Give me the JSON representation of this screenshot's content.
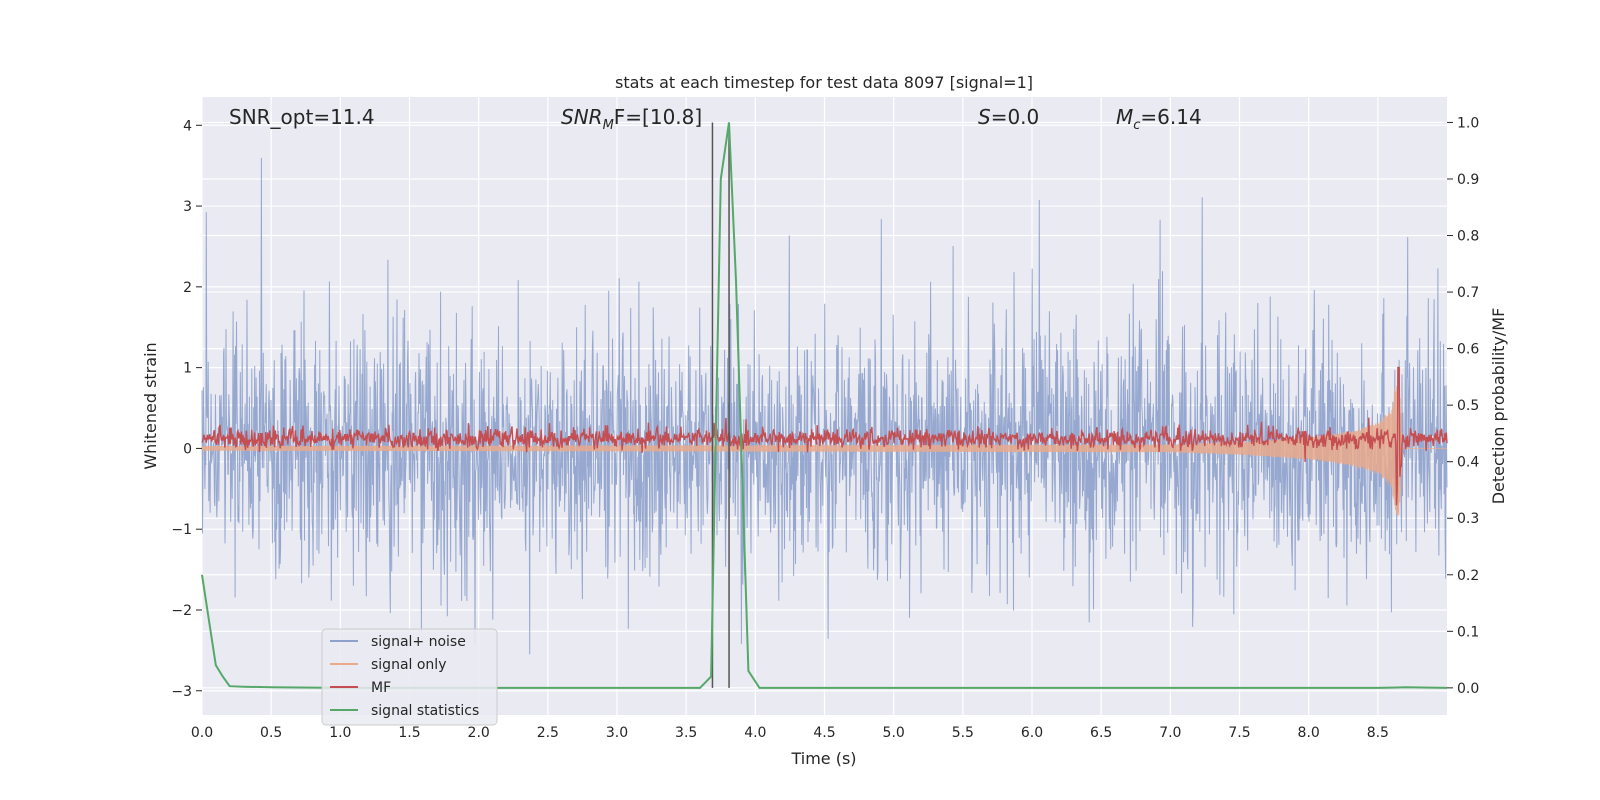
{
  "chart_data": {
    "type": "line",
    "title": "stats at each timestep for test data 8097 [signal=1]",
    "xlabel": "Time (s)",
    "ylabel": "Whitened strain",
    "y2label": "Detection probability/MF",
    "xlim": [
      0.0,
      9.0
    ],
    "ylim": [
      -3.3,
      4.35
    ],
    "y2lim": [
      -0.048,
      1.045
    ],
    "x_ticks": [
      "0.0",
      "0.5",
      "1.0",
      "1.5",
      "2.0",
      "2.5",
      "3.0",
      "3.5",
      "4.0",
      "4.5",
      "5.0",
      "5.5",
      "6.0",
      "6.5",
      "7.0",
      "7.5",
      "8.0",
      "8.5"
    ],
    "y_ticks": [
      "4",
      "3",
      "2",
      "1",
      "0",
      "−1",
      "−2",
      "−3"
    ],
    "y2_ticks": [
      "1.0",
      "0.9",
      "0.8",
      "0.7",
      "0.6",
      "0.5",
      "0.4",
      "0.3",
      "0.2",
      "0.1",
      "0.0"
    ],
    "grid": true,
    "legend_position": "lower-left",
    "annotations": {
      "snr_opt": "SNR_opt=11.4",
      "snr_mf_base": "SNR",
      "snr_mf_sub": "M",
      "snr_mf_rest": "F=[10.8]",
      "s_var": "S",
      "s_rest": "=0.0",
      "mc_base": "M",
      "mc_sub": "c",
      "mc_rest": "=6.14"
    },
    "vertical_lines_x": [
      3.69,
      3.81
    ],
    "series": [
      {
        "name": "signal+ noise",
        "color": "#8da1cb",
        "note_envelope": {
          "start": 0.0,
          "end": 9.0,
          "typical_abs_peak": 2.2,
          "max_peak": 4.0
        }
      },
      {
        "name": "signal only",
        "color": "#e9a98c",
        "envelope": {
          "x": [
            0.0,
            7.0,
            7.5,
            8.0,
            8.3,
            8.5,
            8.6,
            8.65,
            8.68,
            9.0
          ],
          "amp": [
            0.03,
            0.05,
            0.08,
            0.14,
            0.22,
            0.32,
            0.5,
            1.0,
            0.0,
            0.0
          ]
        }
      },
      {
        "name": "MF",
        "color": "#c44e52",
        "baseline": 0.12,
        "peak": {
          "x": 8.65,
          "y": 1.0
        }
      },
      {
        "name": "signal statistics",
        "color": "#55a868",
        "axis": "right",
        "x": [
          0.0,
          0.05,
          0.1,
          0.15,
          0.2,
          0.3,
          0.5,
          1.0,
          2.0,
          3.0,
          3.6,
          3.68,
          3.75,
          3.81,
          3.86,
          3.95,
          4.03,
          5.0,
          6.0,
          7.0,
          8.0,
          8.5,
          8.7,
          9.0
        ],
        "values": [
          0.2,
          0.12,
          0.04,
          0.02,
          0.003,
          0.002,
          0.001,
          0.0,
          0.0,
          0.0,
          0.0,
          0.02,
          0.9,
          1.0,
          0.72,
          0.03,
          0.0,
          0.0,
          0.0,
          0.0,
          0.0,
          0.0,
          0.001,
          0.0
        ]
      }
    ]
  }
}
